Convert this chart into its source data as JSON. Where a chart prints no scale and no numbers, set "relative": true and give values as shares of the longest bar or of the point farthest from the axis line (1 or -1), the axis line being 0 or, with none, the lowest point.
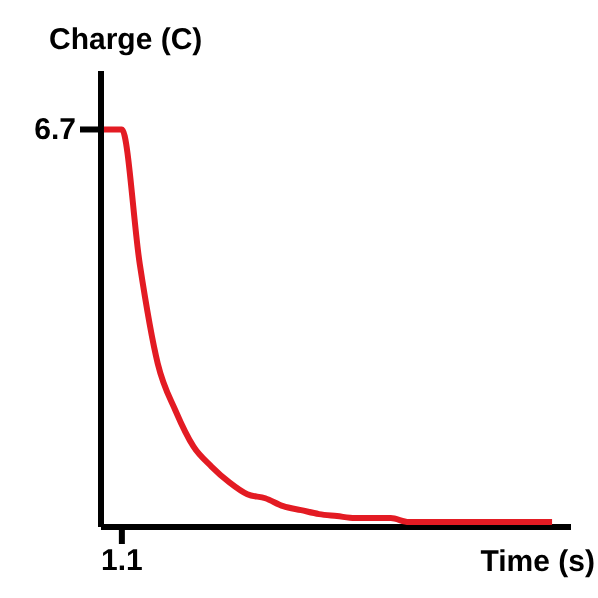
{
  "chart_data": {
    "type": "line",
    "xlabel": "Time (s)",
    "ylabel": "Charge (C)",
    "relative": true,
    "categories": [
      null,
      null,
      null,
      null,
      null,
      null,
      null,
      null,
      null,
      null,
      null,
      null,
      null,
      null,
      null,
      null,
      null,
      null,
      null,
      null,
      null,
      null,
      null,
      null,
      null,
      null
    ],
    "series": [
      {
        "color": "#e31b23",
        "values": [
          1,
          1,
          0.66,
          0.41,
          0.29,
          0.2,
          0.15,
          0.11,
          0.08,
          0.07,
          0.05,
          0.04,
          0.03,
          0.025,
          0.02,
          0.02,
          0.02,
          0.01,
          0.01,
          0.01,
          0.01,
          0.01,
          0.01,
          0.01,
          0.01,
          0.01
        ]
      }
    ],
    "annotations": [
      "6.7",
      "1.1"
    ]
  }
}
